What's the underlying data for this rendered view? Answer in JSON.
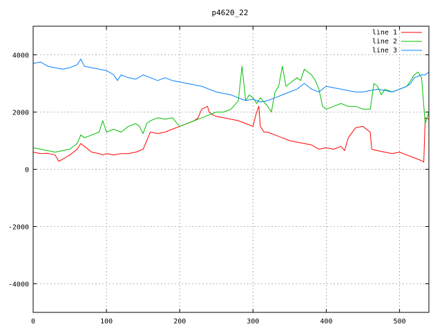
{
  "chart_data": {
    "type": "line",
    "title": "p4620_22",
    "xlabel": "",
    "ylabel": "",
    "xlim": [
      0,
      540
    ],
    "ylim": [
      -5000,
      5000
    ],
    "x_ticks": [
      0,
      100,
      200,
      300,
      400,
      500
    ],
    "y_ticks": [
      -4000,
      -2000,
      0,
      2000,
      4000
    ],
    "grid": true,
    "legend_position": "top-right",
    "series": [
      {
        "name": "line 1",
        "color": "#ff0000",
        "x": [
          0,
          10,
          20,
          30,
          35,
          40,
          50,
          60,
          65,
          70,
          80,
          90,
          95,
          100,
          110,
          120,
          130,
          140,
          150,
          155,
          160,
          170,
          180,
          190,
          200,
          210,
          220,
          225,
          230,
          238,
          240,
          245,
          250,
          260,
          270,
          280,
          290,
          300,
          305,
          308,
          310,
          315,
          320,
          330,
          340,
          350,
          360,
          370,
          380,
          390,
          400,
          410,
          420,
          425,
          430,
          440,
          450,
          460,
          462,
          470,
          480,
          490,
          500,
          510,
          520,
          530,
          533,
          535,
          540
        ],
        "y": [
          600,
          550,
          560,
          500,
          280,
          350,
          500,
          700,
          900,
          800,
          600,
          550,
          500,
          550,
          500,
          550,
          550,
          600,
          700,
          1000,
          1300,
          1250,
          1300,
          1400,
          1500,
          1600,
          1700,
          1800,
          2100,
          2200,
          2000,
          1900,
          1850,
          1800,
          1750,
          1700,
          1600,
          1500,
          2000,
          2200,
          1500,
          1300,
          1300,
          1200,
          1100,
          1000,
          950,
          900,
          850,
          700,
          750,
          700,
          800,
          650,
          1100,
          1450,
          1500,
          1300,
          700,
          650,
          600,
          550,
          600,
          500,
          400,
          300,
          250,
          1800,
          1750
        ]
      },
      {
        "name": "line 2",
        "color": "#00c000",
        "x": [
          0,
          10,
          20,
          30,
          40,
          50,
          60,
          65,
          70,
          80,
          90,
          95,
          100,
          110,
          120,
          130,
          140,
          145,
          150,
          155,
          160,
          170,
          180,
          190,
          200,
          210,
          220,
          230,
          240,
          250,
          260,
          270,
          280,
          285,
          290,
          295,
          300,
          305,
          310,
          320,
          325,
          330,
          335,
          340,
          345,
          350,
          360,
          365,
          370,
          380,
          385,
          390,
          395,
          400,
          410,
          420,
          430,
          440,
          450,
          460,
          465,
          470,
          475,
          480,
          490,
          500,
          510,
          520,
          525,
          530,
          535,
          540
        ],
        "y": [
          750,
          700,
          650,
          600,
          650,
          700,
          900,
          1200,
          1100,
          1200,
          1300,
          1700,
          1300,
          1400,
          1300,
          1500,
          1600,
          1500,
          1250,
          1600,
          1700,
          1800,
          1750,
          1800,
          1500,
          1600,
          1700,
          1800,
          1900,
          2000,
          2000,
          2100,
          2400,
          3600,
          2400,
          2600,
          2500,
          2300,
          2500,
          2200,
          2000,
          2700,
          2900,
          3600,
          2900,
          3000,
          3200,
          3100,
          3500,
          3300,
          3100,
          2800,
          2200,
          2100,
          2200,
          2300,
          2200,
          2200,
          2100,
          2100,
          3000,
          2900,
          2600,
          2800,
          2700,
          2800,
          2900,
          3300,
          3400,
          3200,
          1600,
          2000
        ]
      },
      {
        "name": "line 3",
        "color": "#0080ff",
        "x": [
          0,
          10,
          20,
          30,
          40,
          50,
          60,
          65,
          70,
          80,
          90,
          100,
          110,
          115,
          120,
          130,
          140,
          150,
          160,
          170,
          180,
          190,
          200,
          210,
          220,
          230,
          240,
          250,
          260,
          270,
          280,
          290,
          300,
          310,
          320,
          330,
          340,
          350,
          360,
          370,
          380,
          390,
          400,
          410,
          420,
          430,
          440,
          450,
          460,
          470,
          480,
          490,
          500,
          510,
          515,
          520,
          530,
          535,
          540
        ],
        "y": [
          3700,
          3750,
          3600,
          3550,
          3500,
          3550,
          3650,
          3850,
          3600,
          3550,
          3500,
          3450,
          3300,
          3100,
          3300,
          3200,
          3150,
          3300,
          3200,
          3100,
          3200,
          3100,
          3050,
          3000,
          2950,
          2900,
          2800,
          2700,
          2650,
          2600,
          2500,
          2400,
          2450,
          2350,
          2400,
          2500,
          2600,
          2700,
          2800,
          3000,
          2800,
          2700,
          2900,
          2850,
          2800,
          2750,
          2700,
          2700,
          2750,
          2800,
          2750,
          2700,
          2800,
          2900,
          3000,
          3200,
          3300,
          3300,
          3400
        ]
      }
    ]
  }
}
